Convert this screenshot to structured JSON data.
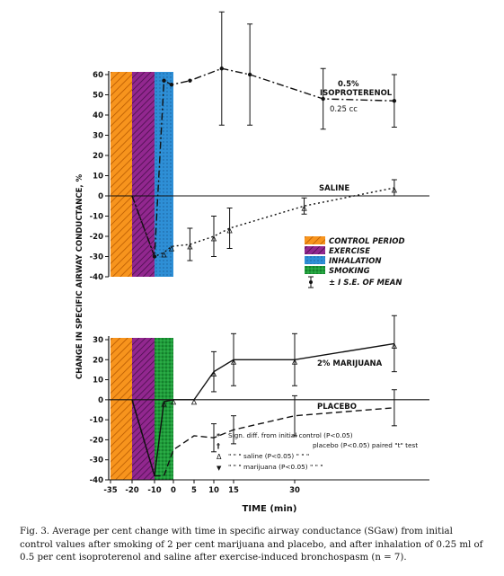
{
  "figure": {
    "ylabel": "CHANGE IN SPECIFIC AIRWAY CONDUCTANCE, %",
    "xlabel": "TIME (min)",
    "caption": "Fig. 3. Average per cent change with time in specific airway conductance (SGaw) from initial control values after smoking of 2 per cent marijuana and placebo, and after inhalation of 0.25 ml of 0.5 per cent isoproterenol and saline after exercise-induced bronchospasm (n = 7)."
  },
  "top_panel": {
    "label_iso_1": "0.5%",
    "label_iso_2": "ISOPROTERENOL",
    "label_iso_3": "0.25 cc",
    "label_saline": "SALINE",
    "legend": [
      {
        "label": "CONTROL PERIOD",
        "swatch": "control"
      },
      {
        "label": "EXERCISE",
        "swatch": "exercise"
      },
      {
        "label": "INHALATION",
        "swatch": "inhalation"
      },
      {
        "label": "SMOKING",
        "swatch": "smoking"
      },
      {
        "label": "± I S.E. OF MEAN",
        "swatch": "errorbar"
      }
    ]
  },
  "bottom_panel": {
    "label_marijuana": "2% MARIJUANA",
    "label_placebo": "PLACEBO",
    "notes": [
      {
        "sym": "*",
        "text": "Sign. diff. from initial control (P<0.05)"
      },
      {
        "sym": "†",
        "text": "placebo     (P<0.05) paired \"t\" test"
      },
      {
        "sym": "Δ",
        "text": "\"   \"   \"   saline      (P<0.05)   \"   \"   \""
      },
      {
        "sym": "▼",
        "text": "\"   \"   \"   marijuana (P<0.05)   \"   \"   \""
      }
    ]
  },
  "colors": {
    "control": "#f7941d",
    "exercise": "#92278f",
    "inhalation": "#2e8fd6",
    "smoking": "#1f9d3a"
  },
  "chart_data": [
    {
      "type": "line",
      "panel": "top",
      "xlabel": "TIME (min)",
      "ylabel": "CHANGE IN SPECIFIC AIRWAY CONDUCTANCE, %",
      "xticks": [
        -35,
        -20,
        -10,
        0,
        5,
        10,
        15,
        30
      ],
      "yticks": [
        -40,
        -30,
        -20,
        -10,
        0,
        10,
        20,
        30,
        40,
        50,
        60
      ],
      "ylim": [
        -40,
        62
      ],
      "shaded_periods": [
        {
          "name": "CONTROL PERIOD",
          "x": [
            -35,
            -27
          ]
        },
        {
          "name": "EXERCISE",
          "x": [
            -27,
            -19
          ]
        },
        {
          "name": "INHALATION",
          "x": [
            -19,
            -11
          ]
        }
      ],
      "series": [
        {
          "name": "0.5% ISOPROTERENOL 0.25 cc",
          "x": [
            -20,
            -10,
            -5,
            -1,
            4,
            12,
            19,
            36,
            51
          ],
          "y": [
            0,
            -30,
            57,
            55,
            57,
            63,
            60,
            48,
            47
          ],
          "err": [
            0,
            0,
            0,
            0,
            0,
            28,
            25,
            15,
            13
          ]
        },
        {
          "name": "SALINE",
          "x": [
            -20,
            -10,
            -5,
            -1,
            4,
            10,
            14,
            32,
            51
          ],
          "y": [
            0,
            -30,
            -28,
            -25,
            -24,
            -20,
            -16,
            -5,
            4
          ],
          "err": [
            0,
            0,
            0,
            0,
            8,
            10,
            10,
            4,
            4
          ]
        }
      ]
    },
    {
      "type": "line",
      "panel": "bottom",
      "xlabel": "TIME (min)",
      "xticks": [
        -35,
        -20,
        -10,
        0,
        5,
        10,
        15,
        30
      ],
      "yticks": [
        -40,
        -30,
        -20,
        -10,
        0,
        10,
        20,
        30
      ],
      "ylim": [
        -40,
        30
      ],
      "shaded_periods": [
        {
          "name": "CONTROL PERIOD",
          "x": [
            -35,
            -27
          ]
        },
        {
          "name": "EXERCISE",
          "x": [
            -27,
            -19
          ]
        },
        {
          "name": "SMOKING",
          "x": [
            -19,
            -11
          ]
        }
      ],
      "series": [
        {
          "name": "2% MARIJUANA",
          "x": [
            -20,
            -10,
            -5,
            0,
            5,
            10,
            15,
            30,
            51
          ],
          "y": [
            0,
            -38,
            -1,
            0,
            0,
            14,
            20,
            20,
            28
          ],
          "err": [
            0,
            0,
            0,
            0,
            0,
            10,
            13,
            13,
            14
          ]
        },
        {
          "name": "PLACEBO",
          "x": [
            -20,
            -10,
            -5,
            0,
            5,
            10,
            15,
            30,
            51
          ],
          "y": [
            0,
            -38,
            -38,
            -25,
            -18,
            -19,
            -15,
            -8,
            -4
          ],
          "err": [
            0,
            0,
            0,
            0,
            0,
            7,
            7,
            10,
            9
          ]
        }
      ]
    }
  ]
}
